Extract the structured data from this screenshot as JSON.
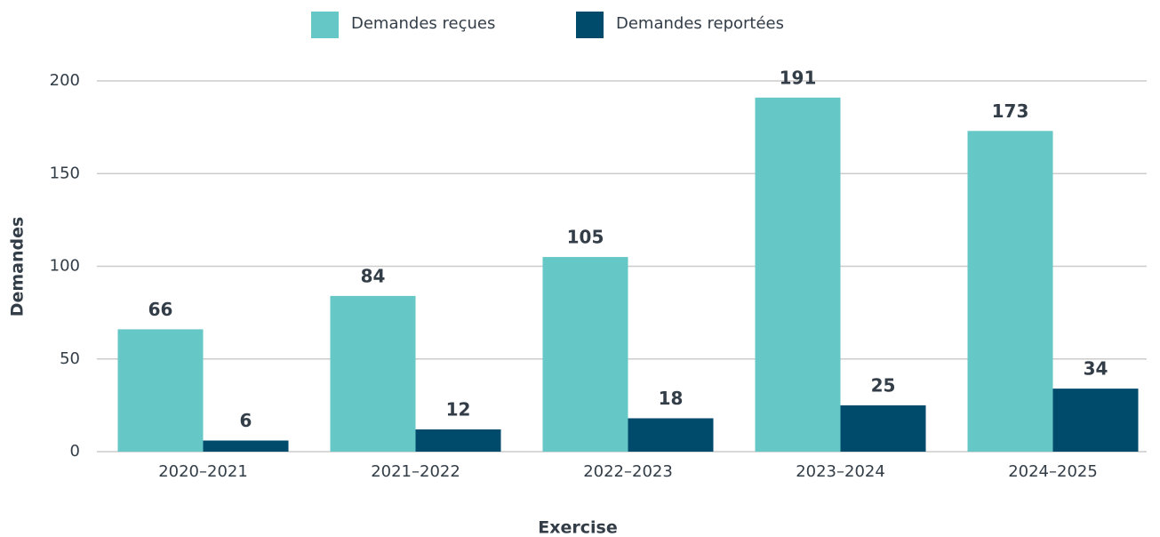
{
  "chart_data": {
    "type": "bar",
    "x_label": "Exercise",
    "y_label": "Demandes",
    "categories": [
      "2020–2021",
      "2021–2022",
      "2022–2023",
      "2023–2024",
      "2024–2025"
    ],
    "series": [
      {
        "name": "Demandes reçues",
        "color": "#66c7c7",
        "values": [
          66,
          84,
          105,
          191,
          173
        ]
      },
      {
        "name": "Demandes reportées",
        "color": "#004a6b",
        "values": [
          6,
          12,
          18,
          25,
          34
        ]
      }
    ],
    "ylim": [
      0,
      200
    ],
    "yticks": [
      0,
      50,
      100,
      150,
      200
    ],
    "grid": true,
    "legend": "top"
  }
}
